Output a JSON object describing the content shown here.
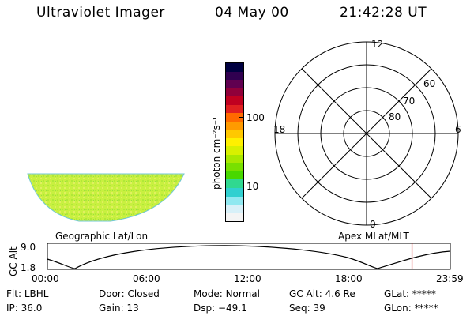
{
  "header": {
    "instrument": "Ultraviolet Imager",
    "date": "04 May 00",
    "time": "21:42:28 UT"
  },
  "colorbar": {
    "unit_label": "photon cm⁻²s⁻¹",
    "ticks": [
      "100",
      "10"
    ],
    "colors": [
      "#000040",
      "#300050",
      "#600050",
      "#90003a",
      "#c00020",
      "#e02020",
      "#ff6a00",
      "#ff9a00",
      "#ffc800",
      "#fff000",
      "#d8f000",
      "#a8e800",
      "#78e000",
      "#48d800",
      "#30d890",
      "#30d0d0",
      "#90e8f0",
      "#d8f0f8",
      "#f4f4f4"
    ]
  },
  "image": {
    "label": "Geographic Lat/Lon",
    "fill_color": "#c8f040"
  },
  "polar": {
    "label": "Apex MLat/MLT",
    "mlt_labels": [
      "12",
      "18",
      "6",
      "0"
    ],
    "lat_labels": [
      "60",
      "70",
      "80"
    ]
  },
  "altitude_plot": {
    "y_label": "GC Alt",
    "y_ticks": [
      "9.0",
      "1.8"
    ],
    "time_ticks": [
      "00:00",
      "06:00",
      "12:00",
      "18:00",
      "23:59"
    ],
    "current_time_fraction": 0.905,
    "marker_color": "#cc0000"
  },
  "status": {
    "row1": [
      {
        "label": "Flt:",
        "value": "LBHL"
      },
      {
        "label": "Door:",
        "value": "Closed"
      },
      {
        "label": "Mode:",
        "value": "Normal"
      },
      {
        "label": "GC Alt:",
        "value": "4.6 Re"
      },
      {
        "label": "GLat:",
        "value": "*****"
      }
    ],
    "row2": [
      {
        "label": "IP:",
        "value": "36.0"
      },
      {
        "label": "Gain:",
        "value": "13"
      },
      {
        "label": "Dsp:",
        "value": "−49.1"
      },
      {
        "label": "Seq:",
        "value": "39"
      },
      {
        "label": "GLon:",
        "value": "*****"
      }
    ]
  }
}
